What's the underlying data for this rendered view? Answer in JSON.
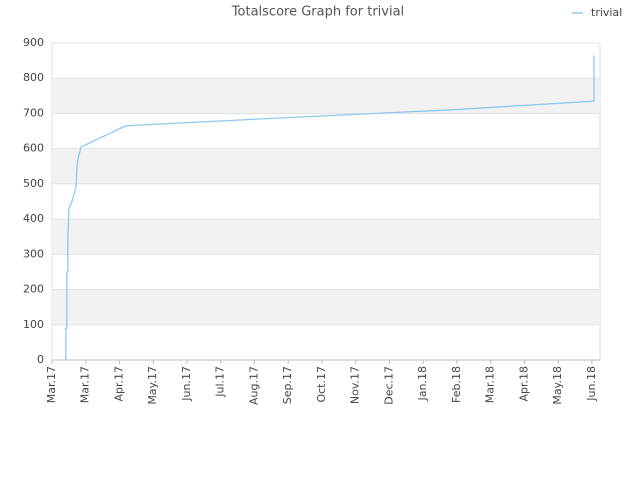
{
  "chart_data": {
    "type": "line",
    "title": "Totalscore Graph for trivial",
    "x": [
      0.41,
      0.41,
      0.44,
      0.44,
      0.47,
      0.47,
      0.5,
      0.59,
      0.71,
      0.74,
      0.77,
      0.86,
      2.19,
      3.2,
      7.35,
      11.79,
      16.06,
      16.06
    ],
    "series": [
      {
        "name": "trivial",
        "color": "#8ec8ee",
        "values": [
          0,
          90,
          90,
          250,
          250,
          350,
          430,
          450,
          490,
          550,
          570,
          605,
          665,
          670,
          690,
          710,
          735,
          865
        ]
      }
    ],
    "xlim": [
      0,
      16.24
    ],
    "xticks": [
      {
        "value": 0,
        "label": "Mar.17"
      },
      {
        "value": 1,
        "label": "Mar.17"
      },
      {
        "value": 2,
        "label": "Apr.17"
      },
      {
        "value": 3,
        "label": "May.17"
      },
      {
        "value": 4,
        "label": "Jun.17"
      },
      {
        "value": 5,
        "label": "Jul.17"
      },
      {
        "value": 6,
        "label": "Aug.17"
      },
      {
        "value": 7,
        "label": "Sep.17"
      },
      {
        "value": 8,
        "label": "Oct.17"
      },
      {
        "value": 9,
        "label": "Nov.17"
      },
      {
        "value": 10,
        "label": "Dec.17"
      },
      {
        "value": 11,
        "label": "Jan.18"
      },
      {
        "value": 12,
        "label": "Feb.18"
      },
      {
        "value": 13,
        "label": "Mar.18"
      },
      {
        "value": 14,
        "label": "Apr.18"
      },
      {
        "value": 15,
        "label": "May.18"
      },
      {
        "value": 16,
        "label": "Jun.18"
      }
    ],
    "ylim": [
      0,
      900
    ],
    "yticks": [
      0,
      100,
      200,
      300,
      400,
      500,
      600,
      700,
      800,
      900
    ],
    "grid": true
  }
}
